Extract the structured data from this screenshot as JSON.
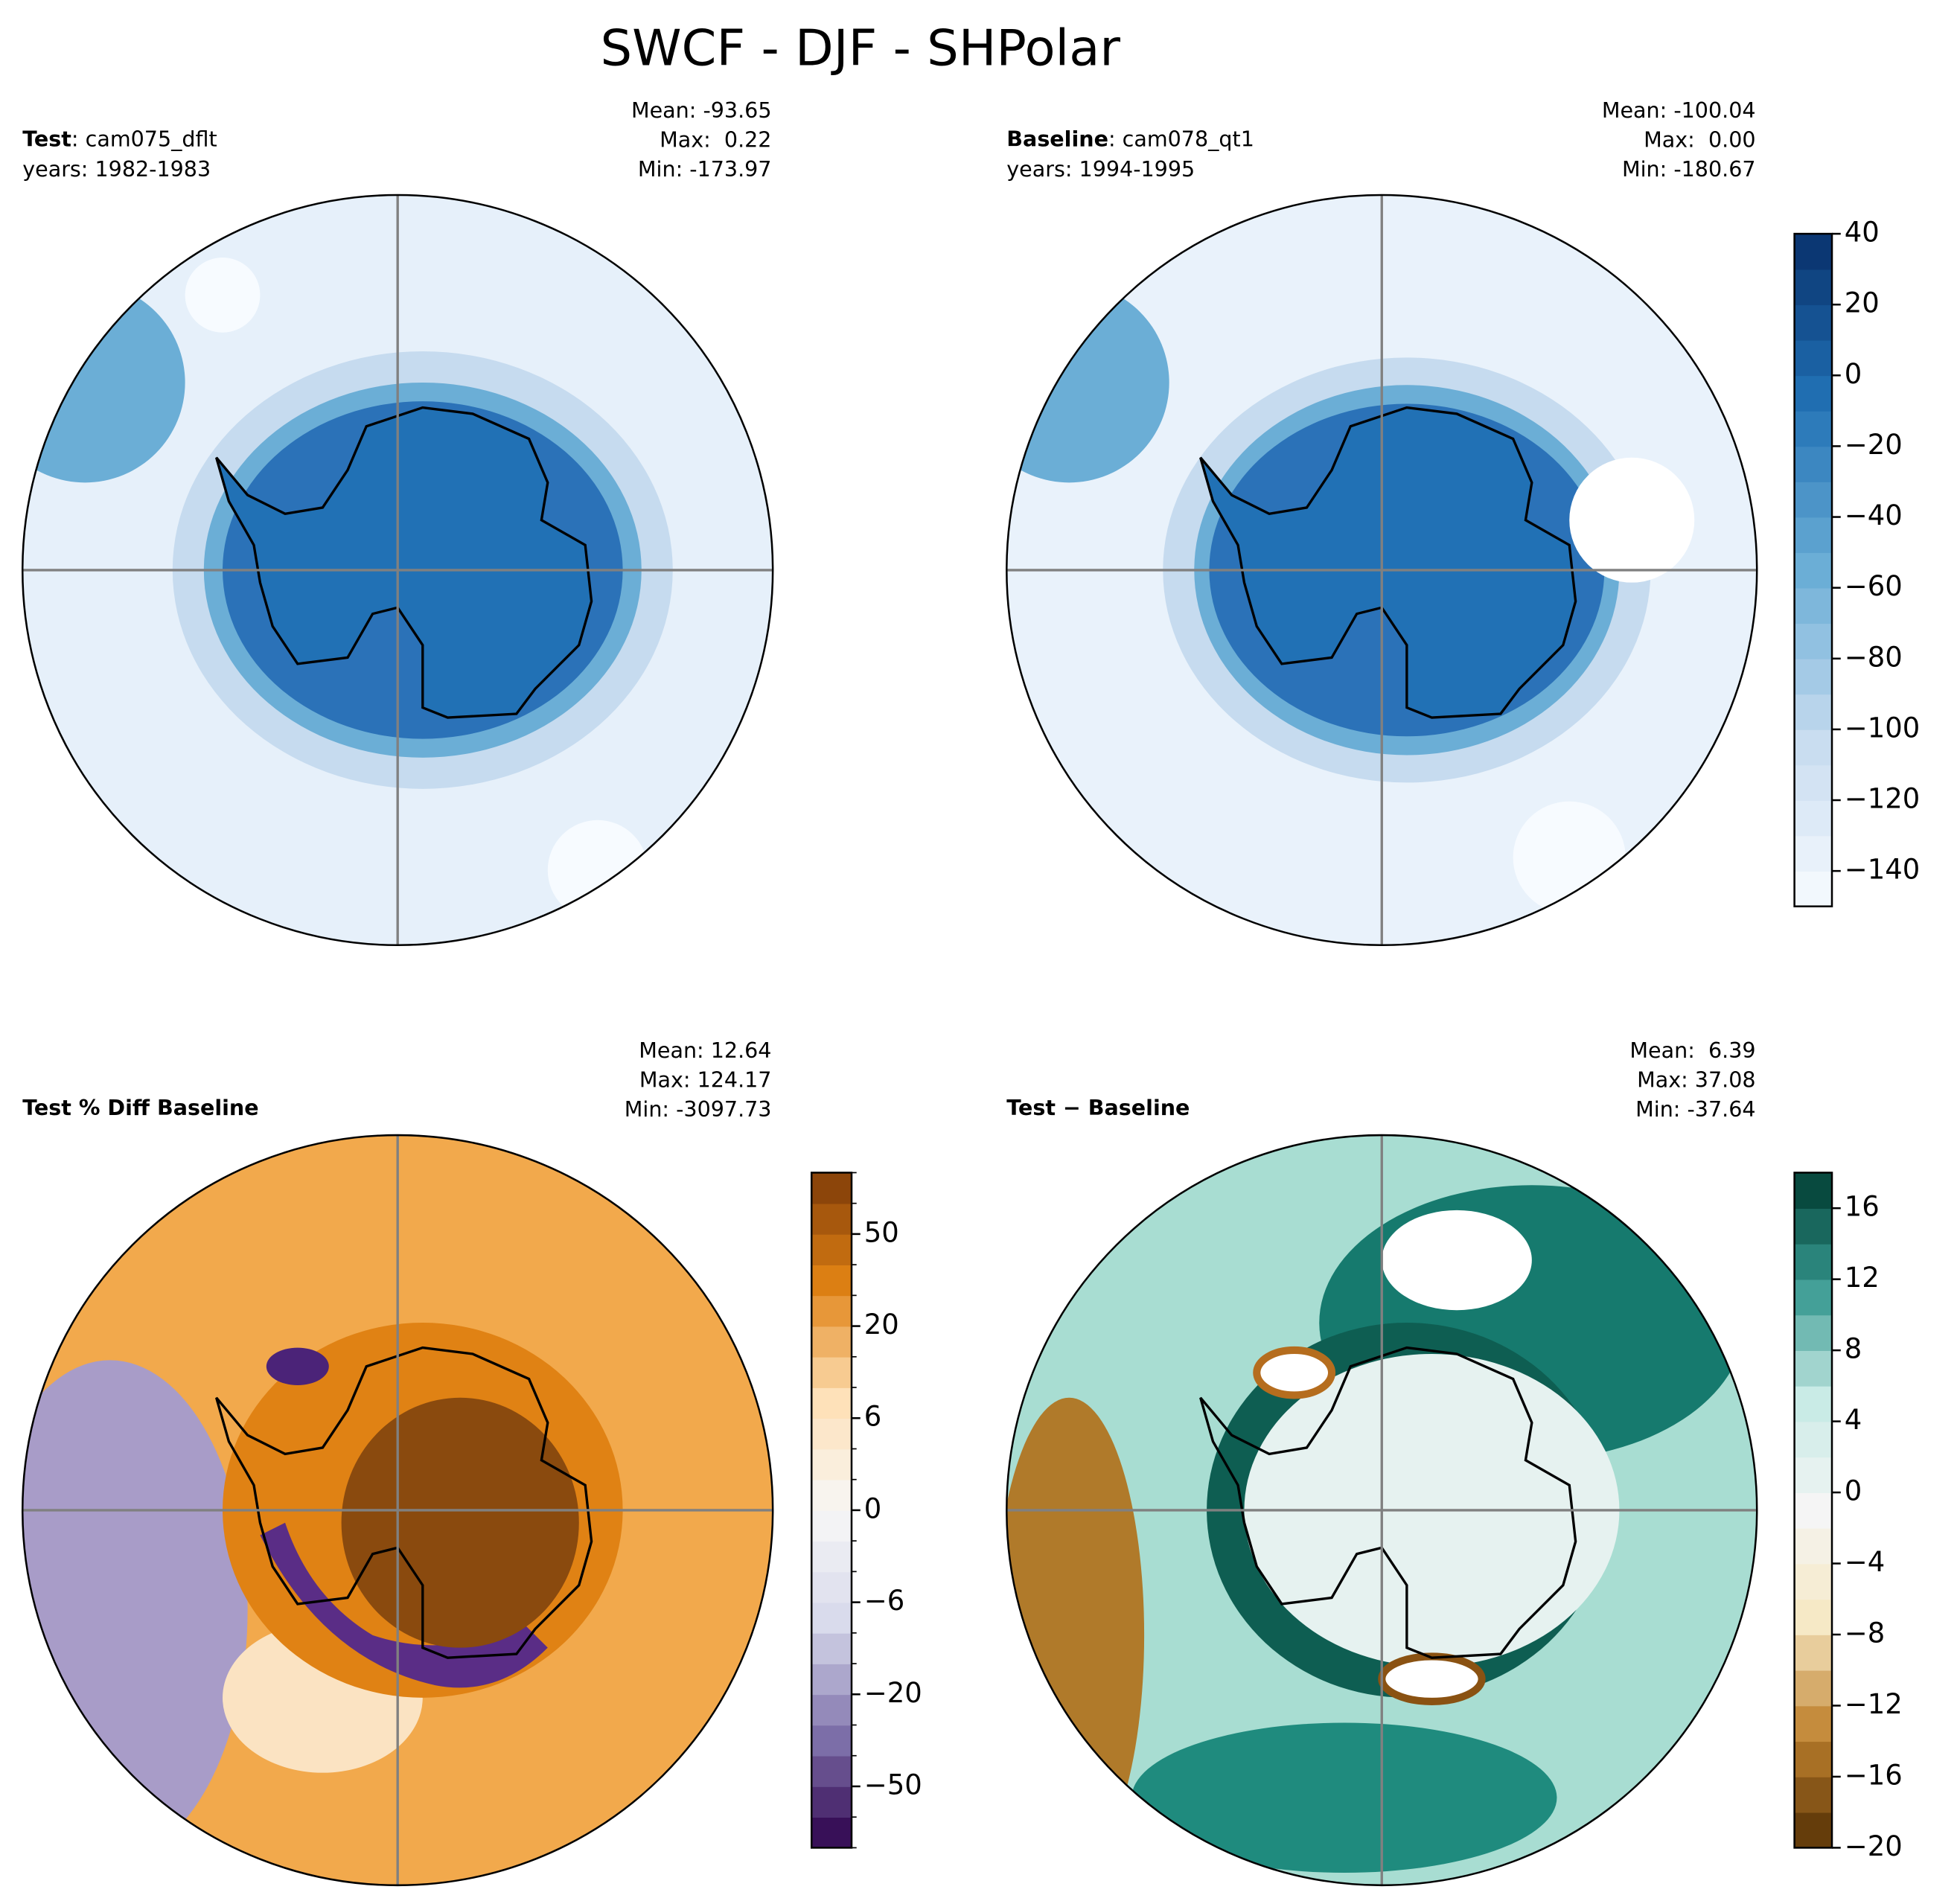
{
  "title": "SWCF - DJF - SHPolar",
  "panels": [
    {
      "case_label": "Test",
      "case_name": ": cam075_dflt",
      "years": "years: 1982-1983",
      "stats": [
        "Mean: -93.65",
        "Max:  0.22",
        "Min: -173.97"
      ]
    },
    {
      "case_label": "Baseline",
      "case_name": ": cam078_qt1",
      "years": "years: 1994-1995",
      "stats": [
        "Mean: -100.04",
        "Max:  0.00",
        "Min: -180.67"
      ]
    },
    {
      "case_label": "Test % Diff Baseline",
      "stats": [
        "Mean: 12.64",
        "Max: 124.17",
        "Min: -3097.73"
      ]
    },
    {
      "case_label": "Test − Baseline",
      "stats": [
        "Mean:  6.39",
        "Max: 37.08",
        "Min: -37.64"
      ]
    }
  ],
  "colorbars": [
    {
      "levels": [
        -150,
        -140,
        -130,
        -120,
        -110,
        -100,
        -90,
        -80,
        -70,
        -60,
        -50,
        -40,
        -30,
        -20,
        -10,
        0,
        10,
        20,
        30,
        40
      ],
      "colors": [
        "#f7fbff",
        "#c6dbef",
        "#6baed6",
        "#2171b5",
        "#08306b"
      ],
      "ticks": [
        40,
        20,
        0,
        {
          "value": -20,
          "label": "−20"
        },
        {
          "value": -40,
          "label": "−40"
        },
        {
          "value": -60,
          "label": "−60"
        },
        {
          "value": -80,
          "label": "−80"
        },
        {
          "value": -100,
          "label": "−100"
        },
        {
          "value": -120,
          "label": "−120"
        },
        {
          "value": -140,
          "label": "−140"
        }
      ]
    },
    {
      "levels": [
        -100,
        -75,
        -50,
        -40,
        -30,
        -20,
        -15,
        -10,
        -6,
        -4,
        -2,
        0,
        2,
        4,
        6,
        10,
        15,
        20,
        30,
        40,
        50,
        75,
        100
      ],
      "colors": [
        "#2d004b",
        "#8073ac",
        "#d8daeb",
        "#f7f7f7",
        "#fee0b6",
        "#e08214",
        "#7f3b08"
      ],
      "ticks": [
        50,
        20,
        6,
        0,
        {
          "value": -6,
          "label": "−6"
        },
        {
          "value": -20,
          "label": "−20"
        },
        {
          "value": -50,
          "label": "−50"
        }
      ]
    },
    {
      "levels": [
        -20,
        -18,
        -16,
        -14,
        -12,
        -10,
        -8,
        -6,
        -4,
        -2,
        0,
        2,
        4,
        6,
        8,
        10,
        12,
        14,
        16,
        18
      ],
      "colors": [
        "#543005",
        "#bf812d",
        "#f6e8c3",
        "#f5f5f5",
        "#c7eae5",
        "#35978f",
        "#003c30"
      ],
      "ticks": [
        16,
        12,
        8,
        4,
        0,
        {
          "value": -4,
          "label": "−4"
        },
        {
          "value": -8,
          "label": "−8"
        },
        {
          "value": -12,
          "label": "−12"
        },
        {
          "value": -16,
          "label": "−16"
        },
        {
          "value": -20,
          "label": "−20"
        }
      ]
    }
  ]
}
